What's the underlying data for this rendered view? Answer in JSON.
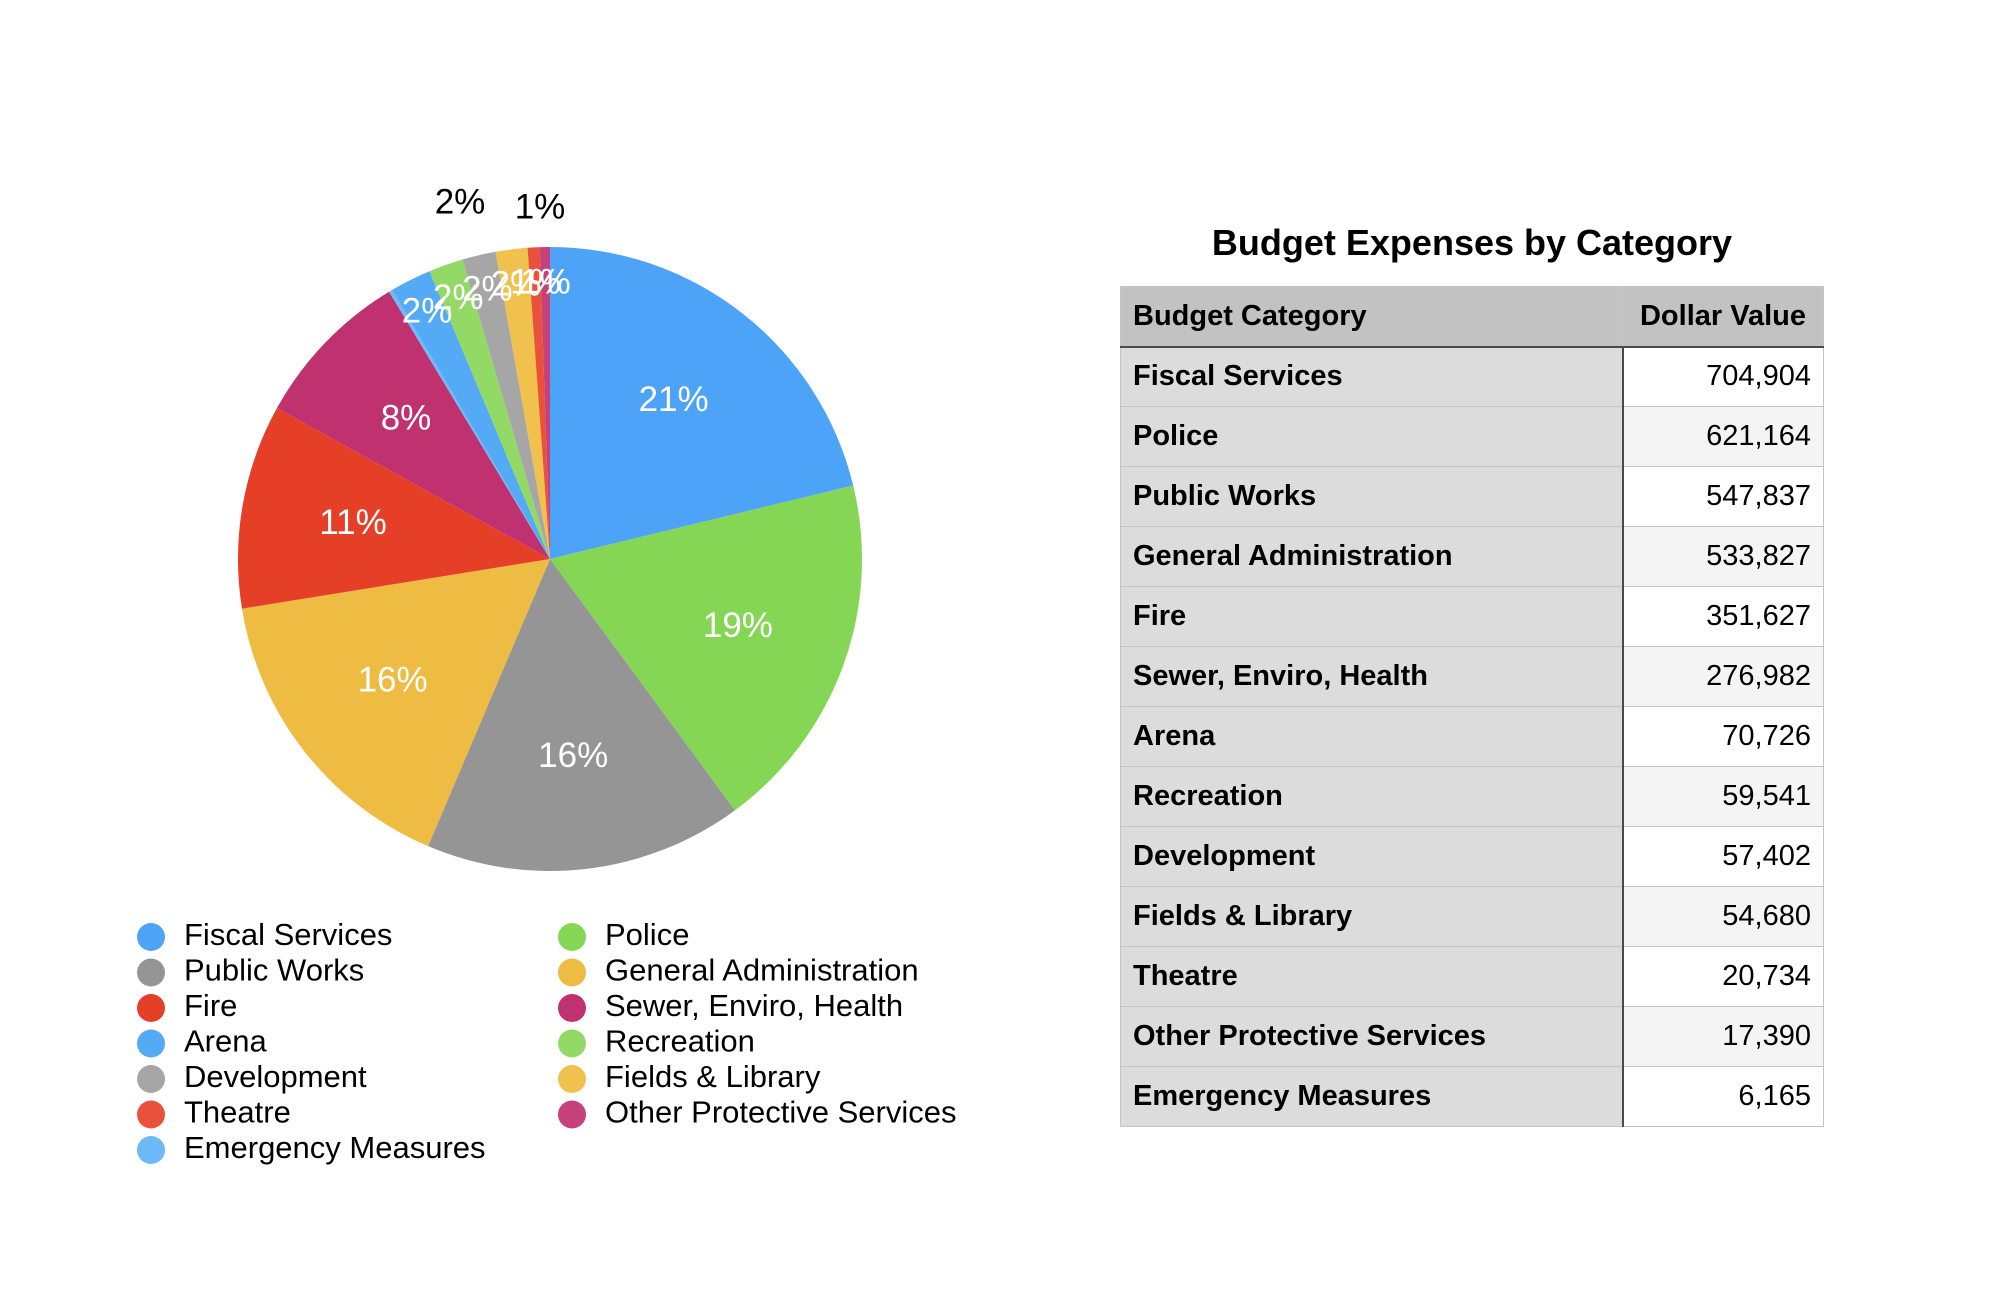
{
  "chart_data": {
    "type": "pie",
    "categories": [
      "Fiscal Services",
      "Police",
      "Public Works",
      "General Administration",
      "Fire",
      "Sewer, Enviro, Health",
      "Arena",
      "Recreation",
      "Development",
      "Fields & Library",
      "Theatre",
      "Other Protective Services",
      "Emergency Measures"
    ],
    "values": [
      704904,
      621164,
      547837,
      533827,
      351627,
      276982,
      70726,
      59541,
      57402,
      54680,
      20734,
      17390,
      6165
    ],
    "slice_order": [
      "Fiscal Services",
      "Police",
      "Public Works",
      "General Administration",
      "Fire",
      "Sewer, Enviro, Health",
      "Emergency Measures",
      "Arena",
      "Recreation",
      "Development",
      "Fields & Library",
      "Theatre",
      "Other Protective Services"
    ],
    "percent_labels": {
      "Fiscal Services": "21%",
      "Police": "19%",
      "Public Works": "16%",
      "General Administration": "16%",
      "Fire": "11%",
      "Sewer, Enviro, Health": "8%",
      "Arena": "2%",
      "Recreation": "2%",
      "Development": "2%",
      "Fields & Library": "2%",
      "Theatre": "1%",
      "Other Protective Services": "1%",
      "Emergency Measures": "0%"
    },
    "outer_labels": [
      "2%",
      "1%"
    ],
    "colors": {
      "Fiscal Services": "#4da3f7",
      "Police": "#86d655",
      "Public Works": "#959595",
      "General Administration": "#eebc42",
      "Fire": "#e54027",
      "Sewer, Enviro, Health": "#c0326f",
      "Emergency Measures": "#6cbaf7",
      "Arena": "#55aaf6",
      "Recreation": "#92d966",
      "Development": "#a6a6a6",
      "Fields & Library": "#f0c24d",
      "Theatre": "#e9513a",
      "Other Protective Services": "#c6417c"
    },
    "legend": {
      "placement": "bottom",
      "columns": [
        [
          "Fiscal Services",
          "Public Works",
          "Fire",
          "Arena",
          "Development",
          "Theatre",
          "Emergency Measures"
        ],
        [
          "Police",
          "General Administration",
          "Sewer, Enviro, Health",
          "Recreation",
          "Fields & Library",
          "Other Protective Services"
        ]
      ]
    }
  },
  "table": {
    "title": "Budget Expenses by Category",
    "headers": [
      "Budget Category",
      "Dollar Value"
    ],
    "rows": [
      [
        "Fiscal Services",
        "704,904"
      ],
      [
        "Police",
        "621,164"
      ],
      [
        "Public Works",
        "547,837"
      ],
      [
        "General Administration",
        "533,827"
      ],
      [
        "Fire",
        "351,627"
      ],
      [
        "Sewer, Enviro, Health",
        "276,982"
      ],
      [
        "Arena",
        "70,726"
      ],
      [
        "Recreation",
        "59,541"
      ],
      [
        "Development",
        "57,402"
      ],
      [
        "Fields & Library",
        "54,680"
      ],
      [
        "Theatre",
        "20,734"
      ],
      [
        "Other Protective Services",
        "17,390"
      ],
      [
        "Emergency Measures",
        "6,165"
      ]
    ]
  }
}
